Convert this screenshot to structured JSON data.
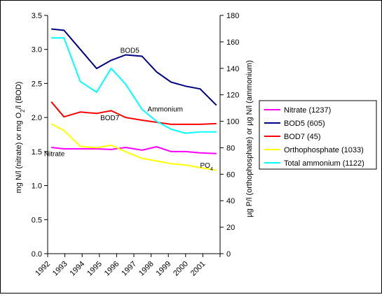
{
  "chart_data": {
    "type": "line",
    "title": "",
    "x": [
      "1992",
      "1993",
      "1994",
      "1995",
      "1996",
      "1997",
      "1998",
      "1999",
      "2000",
      "2001"
    ],
    "y_left": {
      "label_parts": [
        "mg N/l (nitrate) or mg O",
        "2",
        "/l (BOD)"
      ],
      "ylim": [
        0,
        3.5
      ],
      "ticks": [
        "0.0",
        "0.5",
        "1.0",
        "1.5",
        "2.0",
        "2.5",
        "3.0",
        "3.5"
      ]
    },
    "y_right": {
      "label": "µg P/l (orthophosphate) or µg N/l (ammonium)",
      "ylim": [
        0,
        180
      ],
      "ticks": [
        "0",
        "20",
        "40",
        "60",
        "80",
        "100",
        "120",
        "140",
        "160",
        "180"
      ]
    },
    "series": [
      {
        "name": "Nitrate (1237)",
        "axis": "left",
        "color": "#ff00ff",
        "x": [
          1992.2,
          1992.9,
          1993.8,
          1994.7,
          1995.5,
          1996.3,
          1997.2,
          1998.0,
          1998.8,
          1999.6,
          2000.4,
          2001.3
        ],
        "values": [
          1.56,
          1.54,
          1.54,
          1.54,
          1.53,
          1.56,
          1.52,
          1.57,
          1.5,
          1.5,
          1.48,
          1.47
        ]
      },
      {
        "name": "BOD5 (605)",
        "axis": "left",
        "color": "#000080",
        "x": [
          1992.2,
          1992.9,
          1993.8,
          1994.7,
          1995.5,
          1996.3,
          1997.2,
          1998.0,
          1998.8,
          1999.6,
          2000.4,
          2001.3
        ],
        "values": [
          3.3,
          3.28,
          3.0,
          2.72,
          2.84,
          2.92,
          2.9,
          2.67,
          2.52,
          2.46,
          2.42,
          2.18
        ]
      },
      {
        "name": "BOD7 (45)",
        "axis": "left",
        "color": "#ff0000",
        "x": [
          1992.2,
          1992.9,
          1993.8,
          1994.7,
          1995.5,
          1996.3,
          1997.2,
          1998.0,
          1998.8,
          1999.6,
          2000.4,
          2001.3
        ],
        "values": [
          2.23,
          2.01,
          2.08,
          2.06,
          2.1,
          2.0,
          1.96,
          1.93,
          1.9,
          1.9,
          1.9,
          1.91
        ]
      },
      {
        "name": "Orthophosphate (1033)",
        "axis": "right",
        "color": "#ffff00",
        "x": [
          1992.2,
          1992.9,
          1993.8,
          1994.7,
          1995.5,
          1996.3,
          1997.2,
          1998.0,
          1998.8,
          1999.6,
          2000.4,
          2001.3
        ],
        "values": [
          98,
          93,
          81,
          80,
          82,
          77,
          72,
          70,
          68,
          67,
          65,
          63
        ]
      },
      {
        "name": "Total ammonium (1122)",
        "axis": "right",
        "color": "#00ffff",
        "x": [
          1992.2,
          1992.9,
          1993.8,
          1994.7,
          1995.5,
          1996.3,
          1997.2,
          1998.0,
          1998.8,
          1999.6,
          2000.4,
          2001.3
        ],
        "values": [
          163,
          163,
          130,
          122,
          140,
          128,
          109,
          100,
          94,
          91,
          92,
          92
        ]
      }
    ],
    "annotations": [
      {
        "id": "bod5",
        "text": "BOD5",
        "x": 1996.0,
        "y": 2.95
      },
      {
        "id": "ammonium",
        "text": "Ammonium",
        "x": 1997.5,
        "y": 2.09
      },
      {
        "id": "bod7",
        "text": "BOD7",
        "x": 1994.9,
        "y": 1.96
      },
      {
        "id": "nitrate",
        "text": "Nitrate",
        "x": 1991.8,
        "y": 1.43
      },
      {
        "id": "po4",
        "text": "PO",
        "sub": "4",
        "x": 2000.4,
        "y": 1.26
      }
    ],
    "grid": false,
    "legend": "right"
  }
}
